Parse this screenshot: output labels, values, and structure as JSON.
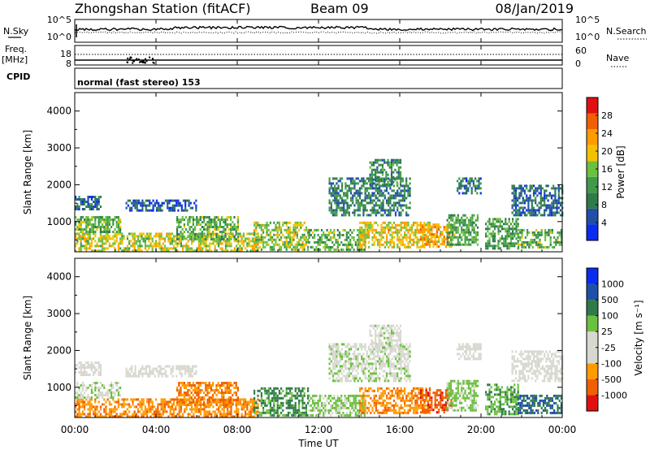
{
  "header": {
    "title": "Zhongshan Station (fitACF)",
    "beam": "Beam 09",
    "date": "08/Jan/2019"
  },
  "panels": {
    "nsky": {
      "label": "N.Sky",
      "left_ticks": [
        "10^5",
        "10^0"
      ],
      "right_ticks": [
        "10^5",
        "10^0"
      ],
      "right_label": "N.Search"
    },
    "freq": {
      "label_line1": "Freq.",
      "label_line2": "[MHz]",
      "left_ticks": [
        "18",
        "8"
      ],
      "right_ticks": [
        "60",
        "0"
      ],
      "right_label": "Nave"
    },
    "cpid": {
      "label": "CPID",
      "text": "normal (fast stereo) 153"
    }
  },
  "colors": {
    "power": [
      "#0a2cf0",
      "#1f4fa8",
      "#2f7a4a",
      "#3f9a4a",
      "#6cc040",
      "#f2c200",
      "#ff9a00",
      "#f06000",
      "#e01010"
    ],
    "velocity": [
      "#e01010",
      "#f06000",
      "#ff9a00",
      "#d8d8d0",
      "#d8d8d0",
      "#6cc040",
      "#2f7a4a",
      "#1f4fa8",
      "#0a2cf0"
    ]
  },
  "chart_data": [
    {
      "type": "heatmap",
      "name": "power",
      "ylabel": "Slant Range [km]",
      "ylim": [
        180,
        4500
      ],
      "yticks": [
        "1000",
        "2000",
        "3000",
        "4000"
      ],
      "ytick_values": [
        1000,
        2000,
        3000,
        4000
      ],
      "colorbar": {
        "label": "Power [dB]",
        "ticks": [
          "4",
          "8",
          "12",
          "16",
          "20",
          "24",
          "28"
        ],
        "range": [
          0,
          32
        ]
      },
      "xlim": [
        0,
        24
      ]
    },
    {
      "type": "heatmap",
      "name": "velocity",
      "ylabel": "Slant Range [km]",
      "ylim": [
        180,
        4500
      ],
      "yticks": [
        "1000",
        "2000",
        "3000",
        "4000"
      ],
      "ytick_values": [
        1000,
        2000,
        3000,
        4000
      ],
      "colorbar": {
        "label": "Velocity [m s⁻¹]",
        "ticks": [
          "-1000",
          "-500",
          "-100",
          "-25",
          "25",
          "100",
          "500",
          "1000"
        ]
      },
      "xlim": [
        0,
        24
      ],
      "xlabel": "Time UT",
      "xticks": [
        "00:00",
        "04:00",
        "08:00",
        "12:00",
        "16:00",
        "20:00",
        "00:00"
      ],
      "xtick_values": [
        0,
        4,
        8,
        12,
        16,
        20,
        24
      ]
    }
  ],
  "echo_regions": [
    {
      "t0": 0.0,
      "t1": 9.0,
      "r0": 200,
      "r1": 700,
      "p": 18,
      "v": -250
    },
    {
      "t0": 0.0,
      "t1": 2.2,
      "r0": 700,
      "r1": 1150,
      "p": 14,
      "v": 40
    },
    {
      "t0": 0.0,
      "t1": 1.3,
      "r0": 1350,
      "r1": 1700,
      "p": 7,
      "v": 0
    },
    {
      "t0": 2.5,
      "t1": 6.0,
      "r0": 1300,
      "r1": 1600,
      "p": 6,
      "v": 0
    },
    {
      "t0": 5.0,
      "t1": 8.0,
      "r0": 500,
      "r1": 1150,
      "p": 14,
      "v": -300
    },
    {
      "t0": 8.8,
      "t1": 11.5,
      "r0": 250,
      "r1": 1000,
      "p": 17,
      "v": 400
    },
    {
      "t0": 11.5,
      "t1": 14.3,
      "r0": 250,
      "r1": 800,
      "p": 14,
      "v": 90
    },
    {
      "t0": 12.5,
      "t1": 16.5,
      "r0": 1150,
      "r1": 2200,
      "p": 9,
      "v": 25
    },
    {
      "t0": 14.5,
      "t1": 16.0,
      "r0": 2000,
      "r1": 2700,
      "p": 11,
      "v": 10
    },
    {
      "t0": 14.0,
      "t1": 17.5,
      "r0": 300,
      "r1": 1000,
      "p": 20,
      "v": -250
    },
    {
      "t0": 17.0,
      "t1": 18.5,
      "r0": 300,
      "r1": 950,
      "p": 22,
      "v": -600
    },
    {
      "t0": 18.3,
      "t1": 19.8,
      "r0": 400,
      "r1": 1200,
      "p": 13,
      "v": 120
    },
    {
      "t0": 20.2,
      "t1": 21.8,
      "r0": 300,
      "r1": 1100,
      "p": 12,
      "v": 250
    },
    {
      "t0": 21.8,
      "t1": 24.0,
      "r0": 300,
      "r1": 800,
      "p": 14,
      "v": 700
    },
    {
      "t0": 21.5,
      "t1": 24.0,
      "r0": 1200,
      "r1": 2000,
      "p": 7,
      "v": 0
    },
    {
      "t0": 18.8,
      "t1": 20.0,
      "r0": 1800,
      "r1": 2200,
      "p": 8,
      "v": 0
    }
  ]
}
